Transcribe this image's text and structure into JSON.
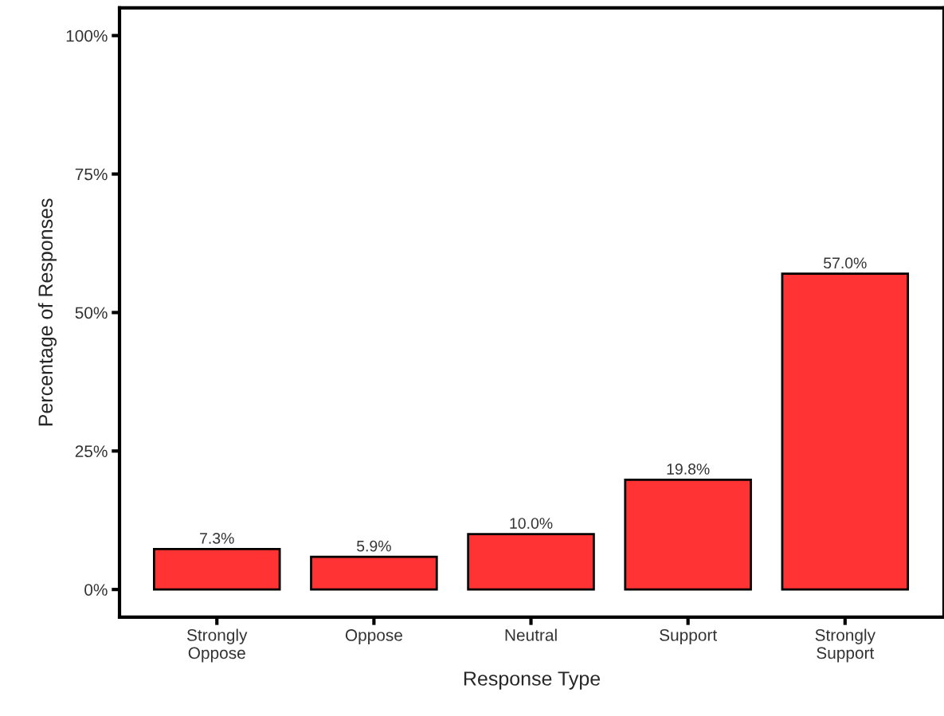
{
  "chart_data": {
    "type": "bar",
    "xlabel": "Response Type",
    "ylabel": "Percentage of Responses",
    "categories": [
      "Strongly\nOppose",
      "Oppose",
      "Neutral",
      "Support",
      "Strongly\nSupport"
    ],
    "values": [
      7.3,
      5.9,
      10.0,
      19.8,
      57.0
    ],
    "color": "#ff3333",
    "value_labels": [
      "7.3%",
      "5.9%",
      "10.0%",
      "19.8%",
      "57.0%"
    ],
    "ylim": [
      -5,
      105
    ],
    "yticks": [
      {
        "value": 0,
        "label": "0%"
      },
      {
        "value": 25,
        "label": "25%"
      },
      {
        "value": 50,
        "label": "50%"
      },
      {
        "value": 75,
        "label": "75%"
      },
      {
        "value": 100,
        "label": "100%"
      }
    ]
  }
}
